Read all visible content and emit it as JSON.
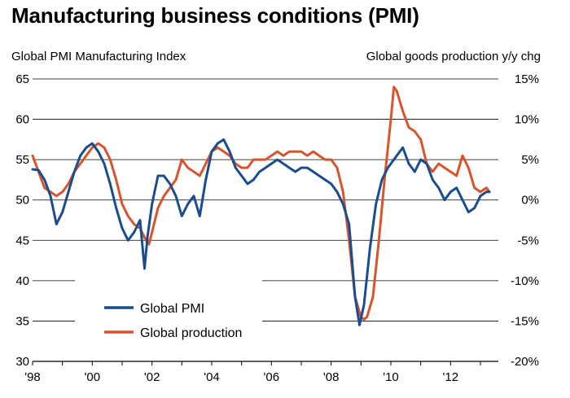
{
  "title": "Manufacturing business conditions (PMI)",
  "left_axis_title": "Global PMI Manufacturing Index",
  "right_axis_title": "Global goods production y/y chg",
  "colors": {
    "pmi": "#1a4d8f",
    "production": "#d9542c",
    "grid": "#000000"
  },
  "chart_data": {
    "type": "line",
    "title": "Manufacturing business conditions (PMI)",
    "x_ticks": [
      "'98",
      "'00",
      "'02",
      "'04",
      "'06",
      "'08",
      "'10",
      "'12"
    ],
    "xlim": [
      1998.0,
      2013.6
    ],
    "left_axis": {
      "label": "Global PMI Manufacturing Index",
      "ylim": [
        30,
        65
      ],
      "ticks": [
        "30",
        "35",
        "40",
        "45",
        "50",
        "55",
        "60",
        "65"
      ]
    },
    "right_axis": {
      "label": "Global goods production y/y chg",
      "ylim": [
        -20,
        15
      ],
      "unit": "%",
      "ticks": [
        "-20%",
        "-15%",
        "-10%",
        "-5%",
        "0%",
        "5%",
        "10%",
        "15%"
      ]
    },
    "grid": "horizontal",
    "legend_position": "bottom-left",
    "series": [
      {
        "name": "Global PMI",
        "axis": "left",
        "color": "#1a4d8f",
        "x": [
          1998.0,
          1998.2,
          1998.4,
          1998.6,
          1998.8,
          1999.0,
          1999.2,
          1999.4,
          1999.6,
          1999.8,
          2000.0,
          2000.2,
          2000.4,
          2000.6,
          2000.8,
          2001.0,
          2001.2,
          2001.4,
          2001.6,
          2001.75,
          2001.85,
          2002.0,
          2002.2,
          2002.4,
          2002.6,
          2002.8,
          2003.0,
          2003.2,
          2003.4,
          2003.6,
          2003.8,
          2004.0,
          2004.2,
          2004.4,
          2004.6,
          2004.8,
          2005.0,
          2005.2,
          2005.4,
          2005.6,
          2005.8,
          2006.0,
          2006.2,
          2006.4,
          2006.6,
          2006.8,
          2007.0,
          2007.2,
          2007.4,
          2007.6,
          2007.8,
          2008.0,
          2008.2,
          2008.4,
          2008.6,
          2008.8,
          2008.95,
          2009.1,
          2009.3,
          2009.5,
          2009.7,
          2009.9,
          2010.0,
          2010.2,
          2010.4,
          2010.6,
          2010.8,
          2011.0,
          2011.2,
          2011.4,
          2011.6,
          2011.8,
          2012.0,
          2012.2,
          2012.4,
          2012.6,
          2012.8,
          2013.0,
          2013.2,
          2013.3
        ],
        "y": [
          53.8,
          53.7,
          52.5,
          50.5,
          47.0,
          48.5,
          51.0,
          53.5,
          55.5,
          56.5,
          57.0,
          56.0,
          54.5,
          52.0,
          49.0,
          46.5,
          45.0,
          46.0,
          47.5,
          41.5,
          45.5,
          49.5,
          53.0,
          53.0,
          52.0,
          50.5,
          48.0,
          49.5,
          50.5,
          48.0,
          52.5,
          56.0,
          57.0,
          57.5,
          56.0,
          54.0,
          53.0,
          52.0,
          52.5,
          53.5,
          54.0,
          54.5,
          55.0,
          54.5,
          54.0,
          53.5,
          54.0,
          54.0,
          53.5,
          53.0,
          52.5,
          52.0,
          51.0,
          49.5,
          47.0,
          38.0,
          34.5,
          37.0,
          44.0,
          49.5,
          52.5,
          54.0,
          54.5,
          55.5,
          56.5,
          54.5,
          53.5,
          55.0,
          54.5,
          52.5,
          51.5,
          50.0,
          51.0,
          51.5,
          50.0,
          48.5,
          49.0,
          50.5,
          51.0,
          51.0
        ]
      },
      {
        "name": "Global production",
        "axis": "right",
        "color": "#d9542c",
        "x": [
          1998.0,
          1998.2,
          1998.4,
          1998.6,
          1998.8,
          1999.0,
          1999.2,
          1999.4,
          1999.6,
          1999.8,
          2000.0,
          2000.2,
          2000.4,
          2000.6,
          2000.8,
          2001.0,
          2001.2,
          2001.4,
          2001.6,
          2001.8,
          2001.9,
          2002.0,
          2002.2,
          2002.4,
          2002.6,
          2002.8,
          2003.0,
          2003.2,
          2003.4,
          2003.6,
          2003.8,
          2004.0,
          2004.2,
          2004.4,
          2004.6,
          2004.8,
          2005.0,
          2005.2,
          2005.4,
          2005.6,
          2005.8,
          2006.0,
          2006.2,
          2006.4,
          2006.6,
          2006.8,
          2007.0,
          2007.2,
          2007.4,
          2007.6,
          2007.8,
          2008.0,
          2008.2,
          2008.4,
          2008.6,
          2008.8,
          2009.0,
          2009.1,
          2009.2,
          2009.4,
          2009.6,
          2009.8,
          2010.0,
          2010.1,
          2010.2,
          2010.4,
          2010.6,
          2010.8,
          2011.0,
          2011.2,
          2011.4,
          2011.6,
          2011.8,
          2012.0,
          2012.2,
          2012.4,
          2012.6,
          2012.8,
          2013.0,
          2013.2,
          2013.3
        ],
        "y": [
          5.5,
          3.5,
          1.5,
          1.0,
          0.5,
          1.0,
          2.0,
          3.5,
          4.5,
          5.5,
          6.5,
          7.0,
          6.5,
          5.0,
          2.5,
          -0.5,
          -2.0,
          -3.0,
          -3.5,
          -5.0,
          -5.5,
          -4.0,
          -1.0,
          0.5,
          1.5,
          2.5,
          5.0,
          4.0,
          3.5,
          3.0,
          4.5,
          6.0,
          6.5,
          6.0,
          5.5,
          4.5,
          4.0,
          4.0,
          5.0,
          5.0,
          5.0,
          5.5,
          6.0,
          5.5,
          6.0,
          6.0,
          6.0,
          5.5,
          6.0,
          5.5,
          5.0,
          5.0,
          4.0,
          1.0,
          -5.0,
          -12.0,
          -14.5,
          -14.8,
          -14.5,
          -12.0,
          -5.0,
          3.0,
          10.0,
          14.0,
          13.5,
          11.0,
          9.0,
          8.5,
          7.5,
          4.5,
          3.5,
          4.5,
          4.0,
          3.5,
          3.0,
          5.5,
          4.0,
          1.5,
          1.0,
          1.5,
          1.0
        ]
      }
    ]
  }
}
